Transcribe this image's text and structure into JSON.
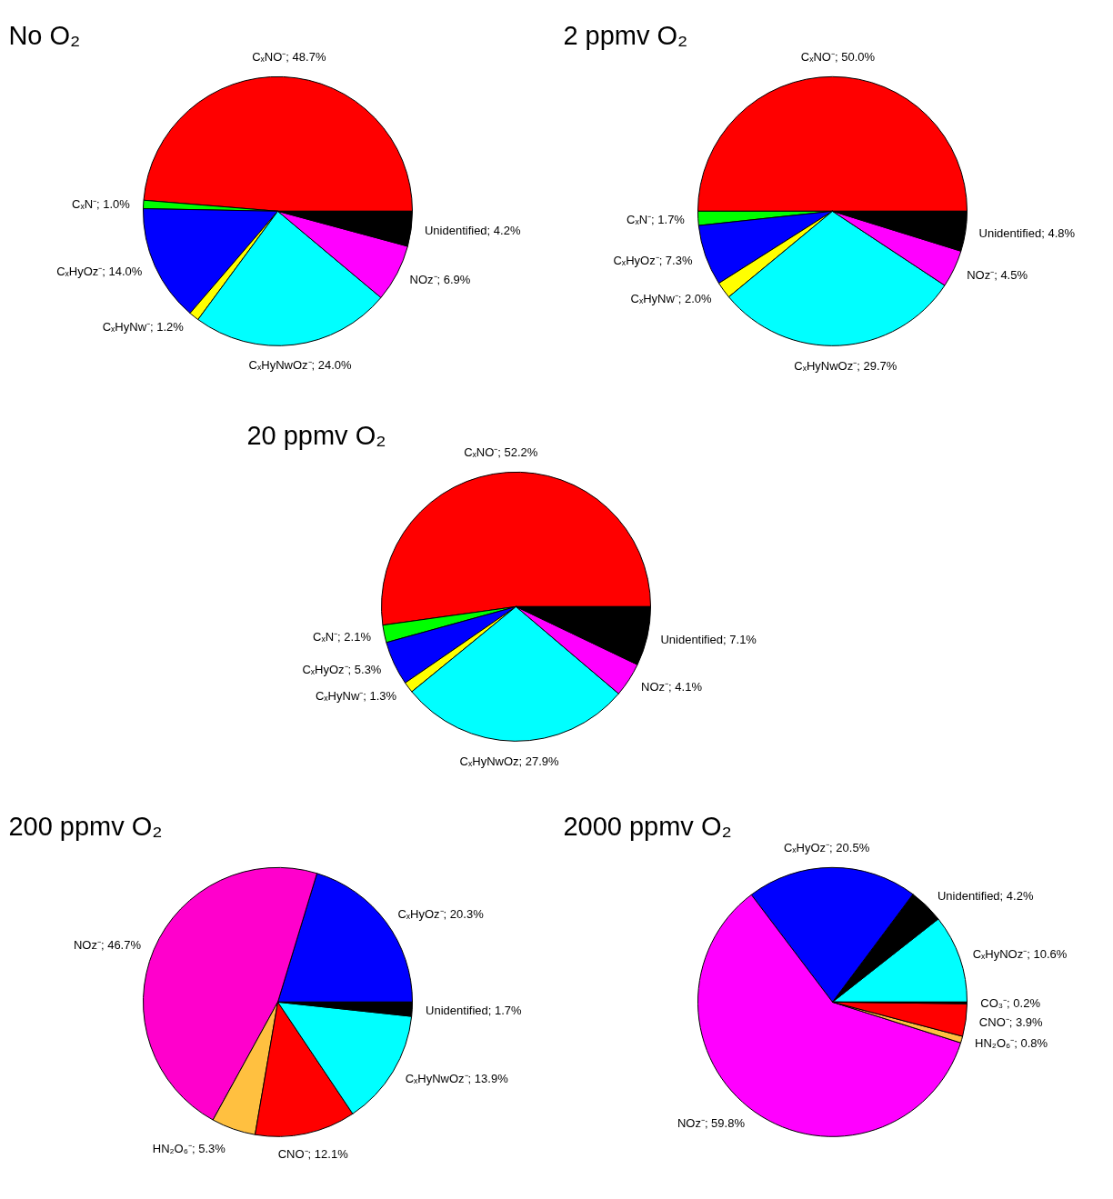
{
  "chart_data": [
    {
      "type": "pie",
      "title": "No O₂",
      "data_labels": true,
      "categories": [
        "CₓNO⁻",
        "CₓN⁻",
        "CₓHyOz⁻",
        "CₓHyNw⁻",
        "CₓHyNwOz⁻",
        "NOz⁻",
        "Unidentified"
      ],
      "values": [
        48.7,
        1.0,
        14.0,
        1.2,
        24.0,
        6.9,
        4.2
      ],
      "value_labels": [
        "48.7%",
        "1.0%",
        "14.0%",
        "1.2%",
        "24.0%",
        "6.9%",
        "4.2%"
      ],
      "colors": [
        "#ff0000",
        "#00ff00",
        "#0000ff",
        "#ffff00",
        "#00ffff",
        "#ff00ff",
        "#000000"
      ]
    },
    {
      "type": "pie",
      "title": "2 ppmv O₂",
      "data_labels": true,
      "categories": [
        "CₓNO⁻",
        "CₓN⁻",
        "CₓHyOz⁻",
        "CₓHyNw⁻",
        "CₓHyNwOz⁻",
        "NOz⁻",
        "Unidentified"
      ],
      "values": [
        50.0,
        1.7,
        7.3,
        2.0,
        29.7,
        4.5,
        4.8
      ],
      "value_labels": [
        "50.0%",
        "1.7%",
        "7.3%",
        "2.0%",
        "29.7%",
        "4.5%",
        "4.8%"
      ],
      "colors": [
        "#ff0000",
        "#00ff00",
        "#0000ff",
        "#ffff00",
        "#00ffff",
        "#ff00ff",
        "#000000"
      ]
    },
    {
      "type": "pie",
      "title": "20 ppmv O₂",
      "data_labels": true,
      "categories": [
        "CₓNO⁻",
        "CₓN⁻",
        "CₓHyOz⁻",
        "CₓHyNw⁻",
        "CₓHyNwOz",
        "NOz⁻",
        "Unidentified"
      ],
      "values": [
        52.2,
        2.1,
        5.3,
        1.3,
        27.9,
        4.1,
        7.1
      ],
      "value_labels": [
        "52.2%",
        "2.1%",
        "5.3%",
        "1.3%",
        "27.9%",
        "4.1%",
        "7.1%"
      ],
      "colors": [
        "#ff0000",
        "#00ff00",
        "#0000ff",
        "#ffff00",
        "#00ffff",
        "#ff00ff",
        "#000000"
      ]
    },
    {
      "type": "pie",
      "title": "200 ppmv O₂",
      "data_labels": true,
      "categories": [
        "CₓHyOz⁻",
        "NOz⁻",
        "HN₂O₆⁻",
        "CNO⁻",
        "CₓHyNwOz⁻",
        "Unidentified"
      ],
      "values": [
        20.3,
        46.7,
        5.3,
        12.1,
        13.9,
        1.7
      ],
      "value_labels": [
        "20.3%",
        "46.7%",
        "5.3%",
        "12.1%",
        "13.9%",
        "1.7%"
      ],
      "colors": [
        "#0000ff",
        "#ff00cc",
        "#ffc040",
        "#ff0000",
        "#00ffff",
        "#000000"
      ]
    },
    {
      "type": "pie",
      "title": "2000 ppmv O₂",
      "data_labels": true,
      "categories": [
        "CₓHyNOz⁻",
        "Unidentified",
        "CₓHyOz⁻",
        "NOz⁻",
        "HN₂O₆⁻",
        "CNO⁻",
        "CO₃⁻"
      ],
      "values": [
        10.6,
        4.2,
        20.5,
        59.8,
        0.8,
        3.9,
        0.2
      ],
      "value_labels": [
        "10.6%",
        "4.2%",
        "20.5%",
        "59.8%",
        "0.8%",
        "3.9%",
        "0.2%"
      ],
      "colors": [
        "#00ffff",
        "#000000",
        "#0000ff",
        "#ff00ff",
        "#ffc040",
        "#ff0000",
        "#000000"
      ]
    }
  ]
}
